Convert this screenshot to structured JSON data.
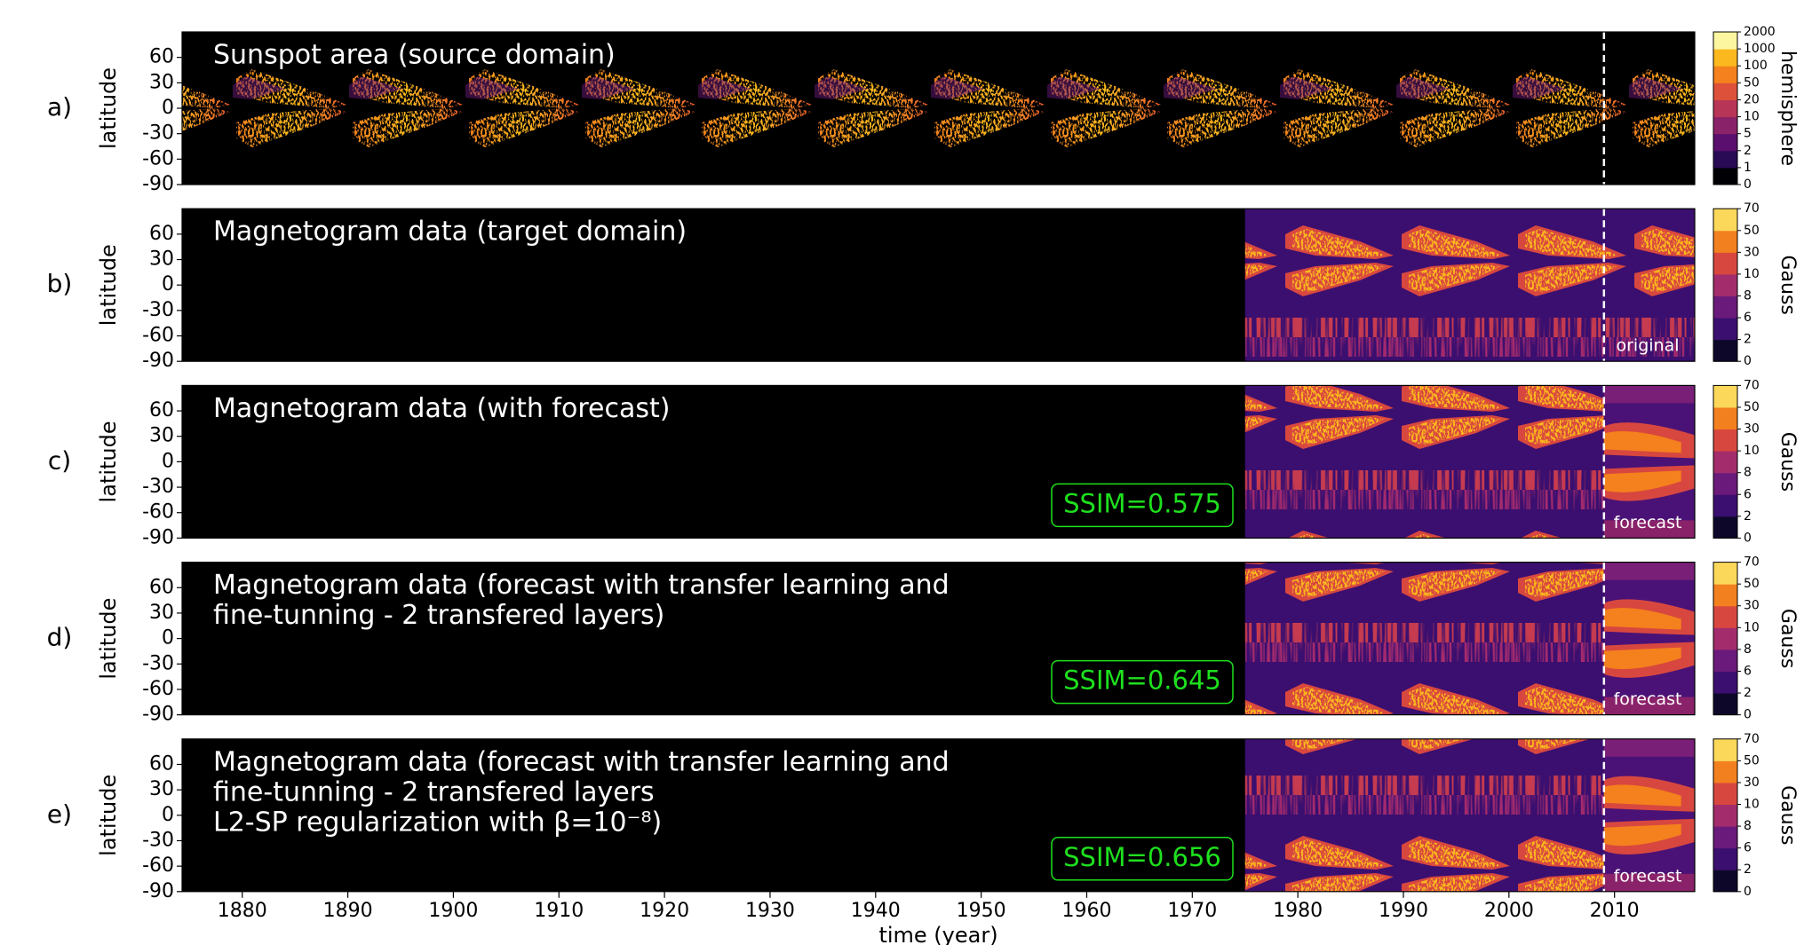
{
  "chart_data": [
    {
      "type": "heatmap",
      "label": "a)",
      "title": [
        "Sunspot area (source domain)"
      ],
      "ylabel": "latitude",
      "xlim": [
        1874.3,
        2017.6
      ],
      "ylim": [
        -90,
        90
      ],
      "yticks": [
        -90,
        -60,
        -30,
        0,
        30,
        60
      ],
      "split": 2009,
      "cbar_label": "hemisphere",
      "cbar_ticks": [
        0,
        1,
        2,
        5,
        10,
        20,
        50,
        100,
        1000,
        2000
      ],
      "cbar_colors": [
        "#000004",
        "#280b54",
        "#5a0f6e",
        "#8a226a",
        "#b73557",
        "#dd513a",
        "#f4811d",
        "#fbb91f",
        "#fcf6a0"
      ]
    },
    {
      "type": "heatmap",
      "label": "b)",
      "title": [
        "Magnetogram data (target domain)"
      ],
      "ylabel": "latitude",
      "xlim": [
        1874.3,
        2017.6
      ],
      "ylim": [
        -90,
        90
      ],
      "yticks": [
        -90,
        -60,
        -30,
        0,
        30,
        60
      ],
      "split": 2009,
      "data_start": 1975,
      "region_label": "original",
      "cbar_label": "Gauss",
      "cbar_ticks": [
        0,
        2,
        6,
        8,
        10,
        30,
        50,
        70
      ],
      "cbar_colors": [
        "#0d0829",
        "#3b0f6f",
        "#6a1a7a",
        "#a32c6d",
        "#d8473f",
        "#f3801f",
        "#fbd85a"
      ]
    },
    {
      "type": "heatmap",
      "label": "c)",
      "title": [
        "Magnetogram data (with forecast)"
      ],
      "ylabel": "latitude",
      "xlim": [
        1874.3,
        2017.6
      ],
      "ylim": [
        -90,
        90
      ],
      "yticks": [
        -90,
        -60,
        -30,
        0,
        30,
        60
      ],
      "split": 2009,
      "data_start": 1975,
      "forecast": true,
      "ssim_label": "SSIM=0.575",
      "region_label": "forecast",
      "cbar_label": "Gauss",
      "cbar_ticks": [
        0,
        2,
        6,
        8,
        10,
        30,
        50,
        70
      ],
      "cbar_colors": [
        "#0d0829",
        "#3b0f6f",
        "#6a1a7a",
        "#a32c6d",
        "#d8473f",
        "#f3801f",
        "#fbd85a"
      ]
    },
    {
      "type": "heatmap",
      "label": "d)",
      "title": [
        "Magnetogram data (forecast with transfer learning and",
        "fine-tunning - 2 transfered layers)"
      ],
      "ylabel": "latitude",
      "xlim": [
        1874.3,
        2017.6
      ],
      "ylim": [
        -90,
        90
      ],
      "yticks": [
        -90,
        -60,
        -30,
        0,
        30,
        60
      ],
      "split": 2009,
      "data_start": 1975,
      "forecast": true,
      "ssim_label": "SSIM=0.645",
      "region_label": "forecast",
      "cbar_label": "Gauss",
      "cbar_ticks": [
        0,
        2,
        6,
        8,
        10,
        30,
        50,
        70
      ],
      "cbar_colors": [
        "#0d0829",
        "#3b0f6f",
        "#6a1a7a",
        "#a32c6d",
        "#d8473f",
        "#f3801f",
        "#fbd85a"
      ]
    },
    {
      "type": "heatmap",
      "label": "e)",
      "title": [
        "Magnetogram data (forecast with transfer learning and",
        "fine-tunning - 2 transfered layers",
        "L2-SP regularization with β=10⁻⁸)"
      ],
      "ylabel": "latitude",
      "xlim": [
        1874.3,
        2017.6
      ],
      "ylim": [
        -90,
        90
      ],
      "yticks": [
        -90,
        -60,
        -30,
        0,
        30,
        60
      ],
      "split": 2009,
      "data_start": 1975,
      "forecast": true,
      "ssim_label": "SSIM=0.656",
      "region_label": "forecast",
      "cbar_label": "Gauss",
      "cbar_ticks": [
        0,
        2,
        6,
        8,
        10,
        30,
        50,
        70
      ],
      "cbar_colors": [
        "#0d0829",
        "#3b0f6f",
        "#6a1a7a",
        "#a32c6d",
        "#d8473f",
        "#f3801f",
        "#fbd85a"
      ],
      "xticks": [
        1880,
        1890,
        1900,
        1910,
        1920,
        1930,
        1940,
        1950,
        1960,
        1970,
        1980,
        1990,
        2000,
        2010
      ],
      "xlabel": "time (year)"
    }
  ]
}
